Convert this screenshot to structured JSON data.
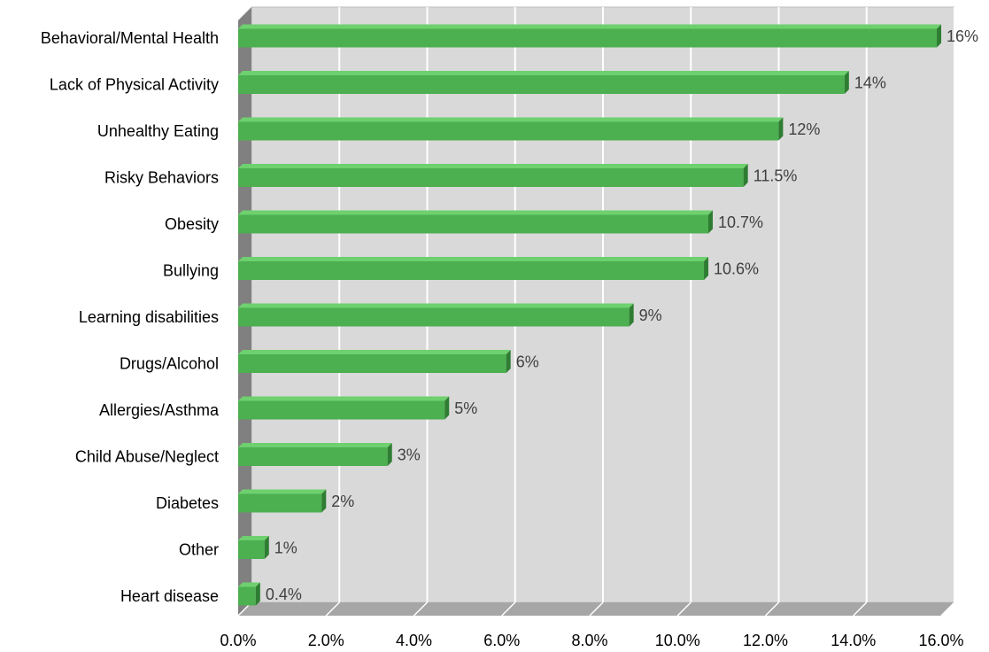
{
  "chart_data": {
    "type": "bar",
    "orientation": "horizontal",
    "style": "3d",
    "title": "",
    "xlabel": "",
    "ylabel": "",
    "categories": [
      "Behavioral/Mental Health",
      "Lack of Physical Activity",
      "Unhealthy Eating",
      "Risky Behaviors",
      "Obesity",
      "Bullying",
      "Learning disabilities",
      "Drugs/Alcohol",
      "Allergies/Asthma",
      "Child Abuse/Neglect",
      "Diabetes",
      "Other",
      "Heart disease"
    ],
    "values": [
      15.9,
      13.8,
      12.3,
      11.5,
      10.7,
      10.6,
      8.9,
      6.1,
      4.7,
      3.4,
      1.9,
      0.6,
      0.4
    ],
    "data_labels": [
      "16%",
      "14%",
      "12%",
      "11.5%",
      "10.7%",
      "10.6%",
      "9%",
      "6%",
      "5%",
      "3%",
      "2%",
      "1%",
      "0.4%"
    ],
    "xlim": [
      0,
      16
    ],
    "x_ticks": [
      0,
      2,
      4,
      6,
      8,
      10,
      12,
      14,
      16
    ],
    "x_tick_labels": [
      "0.0%",
      "2.0%",
      "4.0%",
      "6.0%",
      "8.0%",
      "10.0%",
      "12.0%",
      "14.0%",
      "16.0%"
    ],
    "grid": true,
    "legend": "none",
    "colors": {
      "bar": "#4caf50",
      "bar_top": "#6ed06e",
      "bar_side": "#2e7d32",
      "plot_wall": "#d9d9d9",
      "grid": "#ffffff",
      "side_wall": "#808080",
      "floor": "#a6a6a6"
    }
  }
}
